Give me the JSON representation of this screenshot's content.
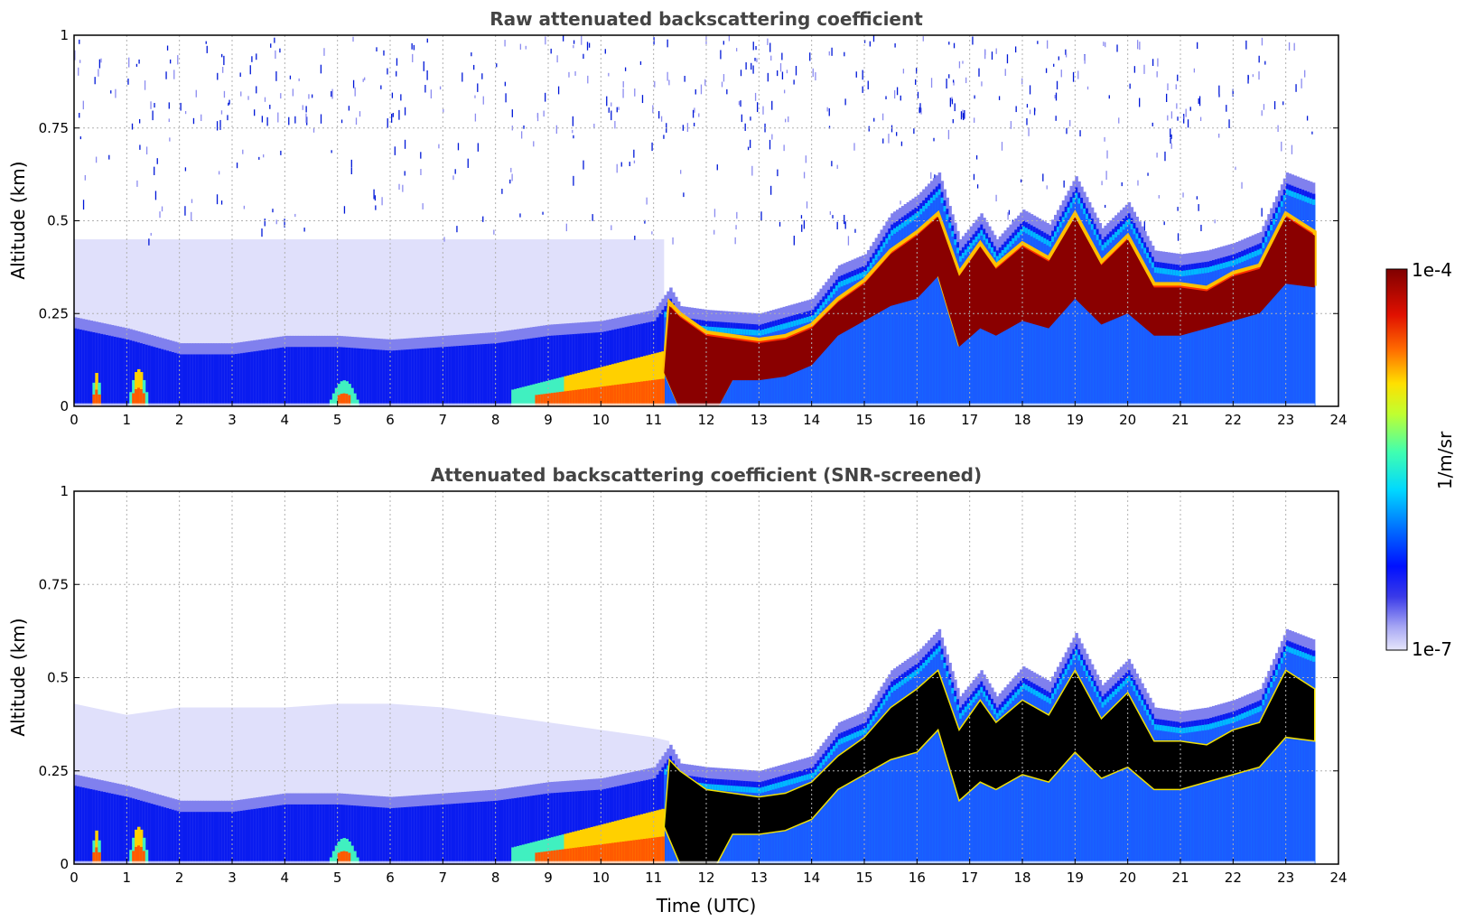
{
  "figure": {
    "colorbar": {
      "max_label": "1e-4",
      "min_label": "1e-7",
      "unit_label": "1/m/sr",
      "scale": "log",
      "colormap": "jet-like (light lavender to blue, cyan, yellow, red, dark red)"
    }
  },
  "chart_data": [
    {
      "type": "heatmap",
      "title": "Raw attenuated backscattering coefficient",
      "xlabel": "",
      "ylabel": "Altitude (km)",
      "xlim": [
        0,
        24
      ],
      "ylim": [
        0,
        1
      ],
      "xticks": [
        "0",
        "1",
        "2",
        "3",
        "4",
        "5",
        "6",
        "7",
        "8",
        "9",
        "10",
        "11",
        "12",
        "13",
        "14",
        "15",
        "16",
        "17",
        "18",
        "19",
        "20",
        "21",
        "22",
        "23",
        "24"
      ],
      "yticks": [
        "0",
        "0.25",
        "0.5",
        "0.75",
        "1"
      ],
      "grid": true,
      "data_end_hour": 23.55,
      "colors": {
        "bg_noise": "#e0e0fb",
        "noise_dots": "#0018d8"
      },
      "layer_top_km": [
        [
          0,
          0.24
        ],
        [
          1,
          0.21
        ],
        [
          2,
          0.17
        ],
        [
          3,
          0.17
        ],
        [
          4,
          0.19
        ],
        [
          5,
          0.19
        ],
        [
          6,
          0.18
        ],
        [
          7,
          0.19
        ],
        [
          8,
          0.2
        ],
        [
          9,
          0.22
        ],
        [
          10,
          0.23
        ],
        [
          11,
          0.26
        ],
        [
          11.3,
          0.32
        ],
        [
          11.5,
          0.27
        ],
        [
          12,
          0.26
        ],
        [
          13,
          0.25
        ],
        [
          14,
          0.29
        ],
        [
          14.5,
          0.38
        ],
        [
          15,
          0.41
        ],
        [
          15.5,
          0.52
        ],
        [
          16,
          0.57
        ],
        [
          16.4,
          0.63
        ],
        [
          16.8,
          0.45
        ],
        [
          17.2,
          0.52
        ],
        [
          17.5,
          0.45
        ],
        [
          18,
          0.53
        ],
        [
          18.5,
          0.49
        ],
        [
          19,
          0.62
        ],
        [
          19.5,
          0.48
        ],
        [
          20,
          0.55
        ],
        [
          20.5,
          0.42
        ],
        [
          21,
          0.41
        ],
        [
          21.5,
          0.42
        ],
        [
          22,
          0.44
        ],
        [
          22.5,
          0.47
        ],
        [
          23,
          0.63
        ],
        [
          23.55,
          0.6
        ]
      ],
      "strong_signal_top_km": [
        [
          11.3,
          0.28
        ],
        [
          11.5,
          0.25
        ],
        [
          12,
          0.2
        ],
        [
          13,
          0.18
        ],
        [
          13.5,
          0.19
        ],
        [
          14,
          0.22
        ],
        [
          14.5,
          0.29
        ],
        [
          15,
          0.34
        ],
        [
          15.5,
          0.42
        ],
        [
          16,
          0.47
        ],
        [
          16.4,
          0.52
        ],
        [
          16.8,
          0.36
        ],
        [
          17.2,
          0.44
        ],
        [
          17.5,
          0.38
        ],
        [
          18,
          0.44
        ],
        [
          18.5,
          0.4
        ],
        [
          19,
          0.52
        ],
        [
          19.5,
          0.39
        ],
        [
          20,
          0.46
        ],
        [
          20.5,
          0.33
        ],
        [
          21,
          0.33
        ],
        [
          21.5,
          0.32
        ],
        [
          22,
          0.36
        ],
        [
          22.5,
          0.38
        ],
        [
          23,
          0.52
        ],
        [
          23.55,
          0.47
        ]
      ],
      "strong_signal_bottom_km": [
        [
          11.2,
          0.1
        ],
        [
          11.5,
          0.0
        ],
        [
          12.2,
          0.0
        ],
        [
          12.5,
          0.08
        ],
        [
          13,
          0.08
        ],
        [
          13.5,
          0.09
        ],
        [
          14,
          0.12
        ],
        [
          14.5,
          0.2
        ],
        [
          15,
          0.24
        ],
        [
          15.5,
          0.28
        ],
        [
          16,
          0.3
        ],
        [
          16.4,
          0.36
        ],
        [
          16.8,
          0.17
        ],
        [
          17.2,
          0.22
        ],
        [
          17.5,
          0.2
        ],
        [
          18,
          0.24
        ],
        [
          18.5,
          0.22
        ],
        [
          19,
          0.3
        ],
        [
          19.5,
          0.23
        ],
        [
          20,
          0.26
        ],
        [
          20.5,
          0.2
        ],
        [
          21,
          0.2
        ],
        [
          21.5,
          0.22
        ],
        [
          22,
          0.24
        ],
        [
          22.5,
          0.26
        ],
        [
          23,
          0.34
        ],
        [
          23.55,
          0.33
        ]
      ]
    },
    {
      "type": "heatmap",
      "title": "Attenuated backscattering coefficient (SNR-screened)",
      "xlabel": "Time (UTC)",
      "ylabel": "Altitude (km)",
      "xlim": [
        0,
        24
      ],
      "ylim": [
        0,
        1
      ],
      "xticks": [
        "0",
        "1",
        "2",
        "3",
        "4",
        "5",
        "6",
        "7",
        "8",
        "9",
        "10",
        "11",
        "12",
        "13",
        "14",
        "15",
        "16",
        "17",
        "18",
        "19",
        "20",
        "21",
        "22",
        "23",
        "24"
      ],
      "yticks": [
        "0",
        "0.25",
        "0.5",
        "0.75",
        "1"
      ],
      "grid": true,
      "screened_fill_color": "#000000",
      "screened_region": "the strongest-signal core from the upper panel is shown in black",
      "faint_haze_top_km": [
        [
          0,
          0.43
        ],
        [
          1,
          0.4
        ],
        [
          2,
          0.42
        ],
        [
          3,
          0.42
        ],
        [
          4,
          0.42
        ],
        [
          5,
          0.43
        ],
        [
          6,
          0.43
        ],
        [
          7,
          0.42
        ],
        [
          8,
          0.4
        ],
        [
          9,
          0.38
        ],
        [
          10,
          0.36
        ],
        [
          11,
          0.34
        ],
        [
          11.3,
          0.33
        ]
      ]
    }
  ]
}
